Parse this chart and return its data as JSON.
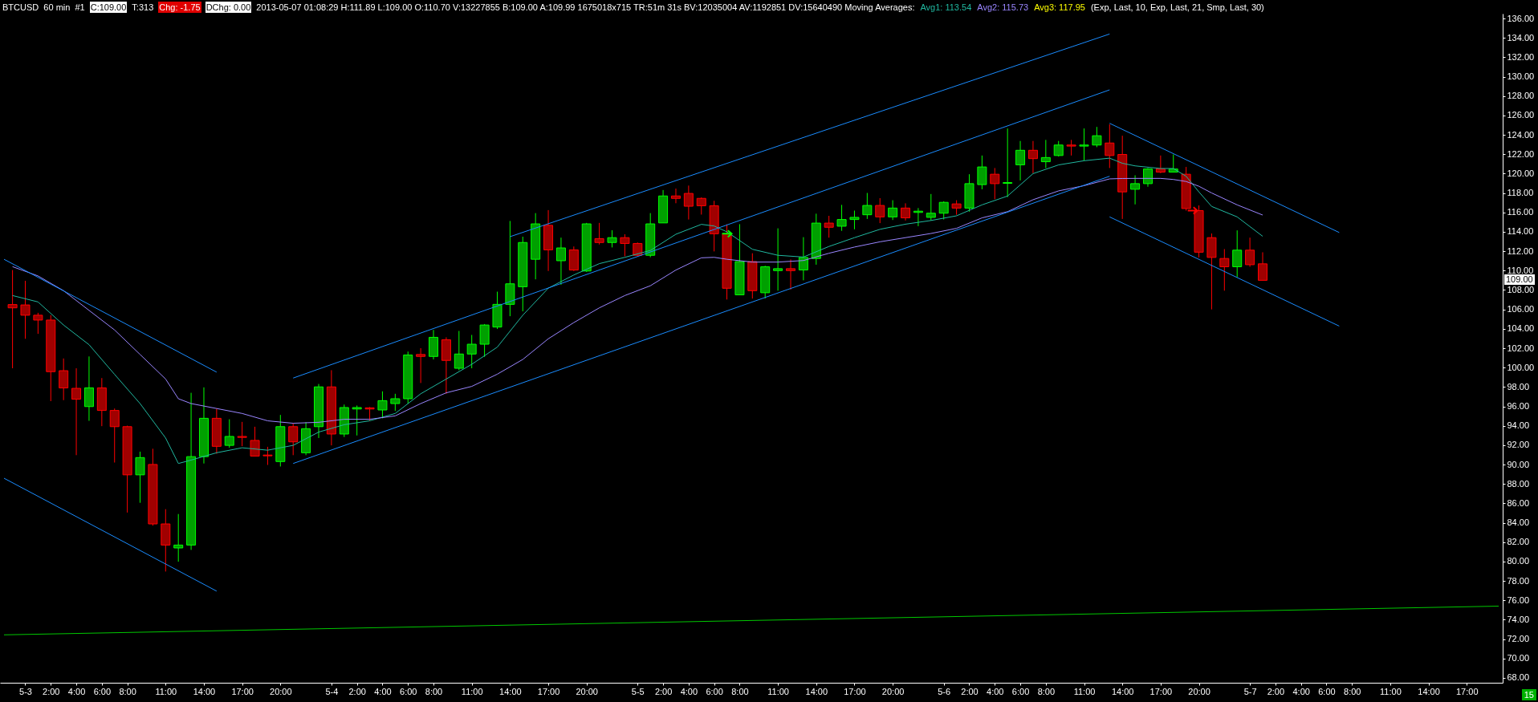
{
  "chart_data": {
    "type": "candlestick",
    "title": "BTCUSD  60 min  #1",
    "annotations": [
      "C:109.00",
      "T:313",
      "Chg: -1.75",
      "DChg: 0.00",
      "2013-05-07 01:08:29 H:111.89 L:109.00 O:110.70 V:13227855 B:109.00 A:109.99 1675018x715 TR:51m 31s BV:12035004 AV:1192851 DV:15640490  Moving Averages:",
      "Avg3: 117.95",
      "(Exp, Last, 10, Exp, Last, 21, Smp, Last, 30)",
      "109.00",
      "15"
    ],
    "x": [
      "2013-05-02T23:00",
      "2013-05-03T00:00",
      "2013-05-03T01:00",
      "2013-05-03T02:00",
      "2013-05-03T03:00",
      "2013-05-03T04:00",
      "2013-05-03T05:00",
      "2013-05-03T06:00",
      "2013-05-03T07:00",
      "2013-05-03T08:00",
      "2013-05-03T09:00",
      "2013-05-03T10:00",
      "2013-05-03T11:00",
      "2013-05-03T12:00",
      "2013-05-03T13:00",
      "2013-05-03T14:00",
      "2013-05-03T15:00",
      "2013-05-03T16:00",
      "2013-05-03T17:00",
      "2013-05-03T18:00",
      "2013-05-03T19:00",
      "2013-05-03T20:00",
      "2013-05-03T21:00",
      "2013-05-03T22:00",
      "2013-05-03T23:00",
      "2013-05-04T00:00",
      "2013-05-04T01:00",
      "2013-05-04T02:00",
      "2013-05-04T03:00",
      "2013-05-04T04:00",
      "2013-05-04T05:00",
      "2013-05-04T06:00",
      "2013-05-04T07:00",
      "2013-05-04T08:00",
      "2013-05-04T09:00",
      "2013-05-04T10:00",
      "2013-05-04T11:00",
      "2013-05-04T12:00",
      "2013-05-04T13:00",
      "2013-05-04T14:00",
      "2013-05-04T15:00",
      "2013-05-04T16:00",
      "2013-05-04T17:00",
      "2013-05-04T18:00",
      "2013-05-04T19:00",
      "2013-05-04T20:00",
      "2013-05-04T21:00",
      "2013-05-04T22:00",
      "2013-05-04T23:00",
      "2013-05-05T00:00",
      "2013-05-05T01:00",
      "2013-05-05T02:00",
      "2013-05-05T03:00",
      "2013-05-05T04:00",
      "2013-05-05T05:00",
      "2013-05-05T06:00",
      "2013-05-05T07:00",
      "2013-05-05T08:00",
      "2013-05-05T09:00",
      "2013-05-05T10:00",
      "2013-05-05T11:00",
      "2013-05-05T12:00",
      "2013-05-05T13:00",
      "2013-05-05T14:00",
      "2013-05-05T15:00",
      "2013-05-05T16:00",
      "2013-05-05T17:00",
      "2013-05-05T18:00",
      "2013-05-05T19:00",
      "2013-05-05T20:00",
      "2013-05-05T21:00",
      "2013-05-05T22:00",
      "2013-05-05T23:00",
      "2013-05-06T00:00",
      "2013-05-06T01:00",
      "2013-05-06T02:00",
      "2013-05-06T03:00",
      "2013-05-06T04:00",
      "2013-05-06T05:00",
      "2013-05-06T06:00",
      "2013-05-06T07:00",
      "2013-05-06T08:00",
      "2013-05-06T09:00",
      "2013-05-06T10:00",
      "2013-05-06T11:00",
      "2013-05-06T12:00",
      "2013-05-06T13:00",
      "2013-05-06T14:00",
      "2013-05-06T15:00",
      "2013-05-06T16:00",
      "2013-05-06T17:00",
      "2013-05-06T18:00",
      "2013-05-06T19:00",
      "2013-05-06T20:00",
      "2013-05-06T21:00",
      "2013-05-06T22:00",
      "2013-05-06T23:00",
      "2013-05-07T00:00",
      "2013-05-07T01:00"
    ],
    "ohlc": [
      [
        106.5,
        110.06,
        99.93,
        106.16
      ],
      [
        106.46,
        108.95,
        102.97,
        105.4
      ],
      [
        105.4,
        105.65,
        103.48,
        104.9
      ],
      [
        104.9,
        105.4,
        96.54,
        99.58
      ],
      [
        99.68,
        100.94,
        96.64,
        97.9
      ],
      [
        97.86,
        99.93,
        90.97,
        96.74
      ],
      [
        95.98,
        101.15,
        94.51,
        97.91
      ],
      [
        97.91,
        98.92,
        93.96,
        95.58
      ],
      [
        95.58,
        95.78,
        90.21,
        93.91
      ],
      [
        93.91,
        94.01,
        85.05,
        88.94
      ],
      [
        88.94,
        91.33,
        86.06,
        90.72
      ],
      [
        90.01,
        91.63,
        83.7,
        83.88
      ],
      [
        83.88,
        85.4,
        78.97,
        81.7
      ],
      [
        81.4,
        84.9,
        79.98,
        81.7
      ],
      [
        81.7,
        97.4,
        81.2,
        90.82
      ],
      [
        90.82,
        97.96,
        90.11,
        94.77
      ],
      [
        94.77,
        95.78,
        91.12,
        91.88
      ],
      [
        91.98,
        94.67,
        91.73,
        92.9
      ],
      [
        92.9,
        94.4,
        91.9,
        92.8
      ],
      [
        92.49,
        93.9,
        90.87,
        90.87
      ],
      [
        90.98,
        91.83,
        89.96,
        90.9
      ],
      [
        90.31,
        95.12,
        89.8,
        93.91
      ],
      [
        93.91,
        94.26,
        90.97,
        92.34
      ],
      [
        91.22,
        94.36,
        90.97,
        93.7
      ],
      [
        93.91,
        98.31,
        92.74,
        98.01
      ],
      [
        98.01,
        99.73,
        91.98,
        93.15
      ],
      [
        93.15,
        96.19,
        92.84,
        95.88
      ],
      [
        95.73,
        96.09,
        93.0,
        95.88
      ],
      [
        95.85,
        95.93,
        94.51,
        95.73
      ],
      [
        95.63,
        97.55,
        94.77,
        96.59
      ],
      [
        96.29,
        97.3,
        95.53,
        96.79
      ],
      [
        96.79,
        101.65,
        96.29,
        101.3
      ],
      [
        101.35,
        102.0,
        98.41,
        101.15
      ],
      [
        101.15,
        103.88,
        100.84,
        103.12
      ],
      [
        102.87,
        103.12,
        97.3,
        100.74
      ],
      [
        99.93,
        103.78,
        99.73,
        101.4
      ],
      [
        101.4,
        103.37,
        99.93,
        102.41
      ],
      [
        102.41,
        104.49,
        101.1,
        104.39
      ],
      [
        104.18,
        107.83,
        103.98,
        106.52
      ],
      [
        106.52,
        115.12,
        105.3,
        108.64
      ],
      [
        108.34,
        113.5,
        105.8,
        112.9
      ],
      [
        111.17,
        115.93,
        109.1,
        114.82
      ],
      [
        114.67,
        116.24,
        109.96,
        112.14
      ],
      [
        111.02,
        113.4,
        108.54,
        112.34
      ],
      [
        112.14,
        112.49,
        109.96,
        110.06
      ],
      [
        109.96,
        114.92,
        109.86,
        114.82
      ],
      [
        113.3,
        114.92,
        112.69,
        112.9
      ],
      [
        112.9,
        114.16,
        112.39,
        113.4
      ],
      [
        113.4,
        113.75,
        111.48,
        112.8
      ],
      [
        112.8,
        112.9,
        111.48,
        111.58
      ],
      [
        111.58,
        115.93,
        111.38,
        114.82
      ],
      [
        114.92,
        118.31,
        114.92,
        117.7
      ],
      [
        117.7,
        118.46,
        116.95,
        117.45
      ],
      [
        117.96,
        118.77,
        115.27,
        116.64
      ],
      [
        117.45,
        117.55,
        115.78,
        116.69
      ],
      [
        116.69,
        117.2,
        111.98,
        113.8
      ],
      [
        113.8,
        114.77,
        107.02,
        108.18
      ],
      [
        107.5,
        114.79,
        107.5,
        110.93
      ],
      [
        110.93,
        111.79,
        107.12,
        107.93
      ],
      [
        107.72,
        110.5,
        107.12,
        110.4
      ],
      [
        110.0,
        114.36,
        107.93,
        110.2
      ],
      [
        110.2,
        111.15,
        108.04,
        110.0
      ],
      [
        110.07,
        113.45,
        109.0,
        111.36
      ],
      [
        111.25,
        115.87,
        110.61,
        114.9
      ],
      [
        114.9,
        115.65,
        113.4,
        114.47
      ],
      [
        114.58,
        116.78,
        114.1,
        115.27
      ],
      [
        115.27,
        116.19,
        114.26,
        115.49
      ],
      [
        115.76,
        118.01,
        115.33,
        116.72
      ],
      [
        116.72,
        117.47,
        114.9,
        115.54
      ],
      [
        115.54,
        117.26,
        115.22,
        116.45
      ],
      [
        116.45,
        116.94,
        115.17,
        115.44
      ],
      [
        116.0,
        116.45,
        114.58,
        116.13
      ],
      [
        115.49,
        117.9,
        115.17,
        115.92
      ],
      [
        115.92,
        117.15,
        115.27,
        117.04
      ],
      [
        116.88,
        117.26,
        115.76,
        116.45
      ],
      [
        116.45,
        119.94,
        116.08,
        118.97
      ],
      [
        118.87,
        121.87,
        118.39,
        120.69
      ],
      [
        119.94,
        120.58,
        117.37,
        118.97
      ],
      [
        119.0,
        124.66,
        117.58,
        119.08
      ],
      [
        120.91,
        123.37,
        119.3,
        122.41
      ],
      [
        122.41,
        123.37,
        120.05,
        121.55
      ],
      [
        121.23,
        123.48,
        120.58,
        121.66
      ],
      [
        121.87,
        123.37,
        121.76,
        122.95
      ],
      [
        122.95,
        123.48,
        121.87,
        122.84
      ],
      [
        122.84,
        124.66,
        121.33,
        122.95
      ],
      [
        122.95,
        124.82,
        122.73,
        123.91
      ],
      [
        123.16,
        125.09,
        120.58,
        121.87
      ],
      [
        121.98,
        123.91,
        115.33,
        118.12
      ],
      [
        118.39,
        119.83,
        116.83,
        118.97
      ],
      [
        118.97,
        120.58,
        118.65,
        120.48
      ],
      [
        120.48,
        121.87,
        120.05,
        120.16
      ],
      [
        120.16,
        121.98,
        120.16,
        120.48
      ],
      [
        119.94,
        120.69,
        116.19,
        116.4
      ],
      [
        116.19,
        116.72,
        111.36,
        111.9
      ],
      [
        113.4,
        113.83,
        106.0,
        111.36
      ],
      [
        111.25,
        112.22,
        107.93,
        110.4
      ],
      [
        110.4,
        114.15,
        109.32,
        112.11
      ],
      [
        112.11,
        113.4,
        110.4,
        110.61
      ],
      [
        110.7,
        111.89,
        109.0,
        109.0
      ]
    ],
    "series": [
      {
        "type": "line",
        "name": "Avg1: 113.54",
        "color": "#20b8a0",
        "x": [
          "2013-05-02T23:00",
          "2013-05-03T01:00",
          "2013-05-03T03:00",
          "2013-05-03T05:00",
          "2013-05-03T07:00",
          "2013-05-03T09:00",
          "2013-05-03T11:00",
          "2013-05-03T12:00",
          "2013-05-03T13:00",
          "2013-05-03T15:00",
          "2013-05-03T17:00",
          "2013-05-03T19:00",
          "2013-05-03T21:00",
          "2013-05-03T23:00",
          "2013-05-04T01:00",
          "2013-05-04T03:00",
          "2013-05-04T05:00",
          "2013-05-04T07:00",
          "2013-05-04T09:00",
          "2013-05-04T11:00",
          "2013-05-04T13:00",
          "2013-05-04T15:00",
          "2013-05-04T17:00",
          "2013-05-04T19:00",
          "2013-05-04T21:00",
          "2013-05-04T23:00",
          "2013-05-05T01:00",
          "2013-05-05T03:00",
          "2013-05-05T05:00",
          "2013-05-05T06:00",
          "2013-05-05T07:00",
          "2013-05-05T09:00",
          "2013-05-05T11:00",
          "2013-05-05T13:00",
          "2013-05-05T15:00",
          "2013-05-05T17:00",
          "2013-05-05T19:00",
          "2013-05-05T21:00",
          "2013-05-05T23:00",
          "2013-05-06T01:00",
          "2013-05-06T03:00",
          "2013-05-06T05:00",
          "2013-05-06T07:00",
          "2013-05-06T09:00",
          "2013-05-06T11:00",
          "2013-05-06T13:00",
          "2013-05-06T14:00",
          "2013-05-06T15:00",
          "2013-05-06T17:00",
          "2013-05-06T18:00",
          "2013-05-06T19:00",
          "2013-05-06T20:00",
          "2013-05-06T21:00",
          "2013-05-06T23:00",
          "2013-05-07T01:00"
        ],
        "values": [
          107.43,
          106.77,
          104.39,
          102.36,
          99.3,
          96.29,
          92.74,
          90.11,
          90.46,
          91.22,
          91.73,
          91.48,
          91.98,
          93.35,
          94.11,
          94.51,
          95.27,
          97.3,
          98.82,
          100.34,
          102.11,
          105.4,
          108.19,
          109.55,
          110.72,
          111.37,
          112.08,
          113.75,
          114.77,
          114.6,
          114.0,
          112.2,
          111.58,
          111.4,
          112.49,
          113.4,
          114.26,
          114.79,
          115.17,
          115.65,
          116.78,
          117.69,
          120.0,
          120.9,
          121.33,
          121.6,
          121.07,
          120.8,
          120.53,
          120.53,
          119.73,
          118.12,
          116.62,
          115.54,
          113.54
        ]
      },
      {
        "type": "line",
        "name": "Avg2: 115.73",
        "color": "#9a86ff",
        "x": [
          "2013-05-02T23:00",
          "2013-05-03T01:00",
          "2013-05-03T03:00",
          "2013-05-03T05:00",
          "2013-05-03T07:00",
          "2013-05-03T09:00",
          "2013-05-03T11:00",
          "2013-05-03T12:00",
          "2013-05-03T13:00",
          "2013-05-03T15:00",
          "2013-05-03T17:00",
          "2013-05-03T19:00",
          "2013-05-03T21:00",
          "2013-05-03T23:00",
          "2013-05-04T01:00",
          "2013-05-04T03:00",
          "2013-05-04T05:00",
          "2013-05-04T07:00",
          "2013-05-04T09:00",
          "2013-05-04T11:00",
          "2013-05-04T13:00",
          "2013-05-04T15:00",
          "2013-05-04T17:00",
          "2013-05-04T19:00",
          "2013-05-04T21:00",
          "2013-05-04T23:00",
          "2013-05-05T01:00",
          "2013-05-05T03:00",
          "2013-05-05T05:00",
          "2013-05-05T06:00",
          "2013-05-05T07:00",
          "2013-05-05T09:00",
          "2013-05-05T11:00",
          "2013-05-05T13:00",
          "2013-05-05T15:00",
          "2013-05-05T17:00",
          "2013-05-05T19:00",
          "2013-05-05T21:00",
          "2013-05-05T23:00",
          "2013-05-06T01:00",
          "2013-05-06T03:00",
          "2013-05-06T05:00",
          "2013-05-06T07:00",
          "2013-05-06T09:00",
          "2013-05-06T11:00",
          "2013-05-06T13:00",
          "2013-05-06T14:00",
          "2013-05-06T15:00",
          "2013-05-06T17:00",
          "2013-05-06T18:00",
          "2013-05-06T19:00",
          "2013-05-06T20:00",
          "2013-05-06T21:00",
          "2013-05-06T23:00",
          "2013-05-07T01:00"
        ],
        "values": [
          110.41,
          109.45,
          107.93,
          105.9,
          103.88,
          101.35,
          98.82,
          96.79,
          96.29,
          95.78,
          95.27,
          94.51,
          94.26,
          94.36,
          94.67,
          94.67,
          95.02,
          96.29,
          97.4,
          98.06,
          99.32,
          100.84,
          102.97,
          104.64,
          106.16,
          107.43,
          108.44,
          110.06,
          111.32,
          111.37,
          111.17,
          110.88,
          110.88,
          111.04,
          111.79,
          112.43,
          112.97,
          113.4,
          113.83,
          114.36,
          115.44,
          116.08,
          117.31,
          118.22,
          118.76,
          119.46,
          119.5,
          119.51,
          119.51,
          119.4,
          119.19,
          118.7,
          118.01,
          116.78,
          115.73
        ]
      },
      {
        "type": "line",
        "color": "#1a8cff",
        "x": [
          "2013-05-02T22:20",
          "2013-05-03T15:00"
        ],
        "values": [
          111.17,
          99.53
        ]
      },
      {
        "type": "line",
        "color": "#1a8cff",
        "x": [
          "2013-05-02T22:20",
          "2013-05-03T15:00"
        ],
        "values": [
          88.59,
          76.95
        ]
      },
      {
        "type": "line",
        "color": "#1a8cff",
        "x": [
          "2013-05-03T21:00",
          "2013-05-06T13:00"
        ],
        "values": [
          90.11,
          119.73
        ]
      },
      {
        "type": "line",
        "color": "#1a8cff",
        "x": [
          "2013-05-03T21:00",
          "2013-05-06T13:00"
        ],
        "values": [
          98.92,
          128.64
        ]
      },
      {
        "type": "line",
        "color": "#1a8cff",
        "x": [
          "2013-05-04T14:00",
          "2013-05-06T13:00"
        ],
        "values": [
          113.5,
          134.4
        ]
      },
      {
        "type": "line",
        "color": "#1a8cff",
        "x": [
          "2013-05-06T13:00",
          "2013-05-07T07:00"
        ],
        "values": [
          125.19,
          113.93
        ]
      },
      {
        "type": "line",
        "color": "#1a8cff",
        "x": [
          "2013-05-06T13:00",
          "2013-05-07T07:00"
        ],
        "values": [
          115.54,
          104.28
        ]
      },
      {
        "type": "line",
        "color": "#00c800",
        "x": [
          "2013-05-02T22:20",
          "2013-05-07T19:30"
        ],
        "values": [
          72.44,
          75.4
        ]
      }
    ],
    "xlim": [
      "2013-05-02T22:20",
      "2013-05-07T19:30"
    ],
    "xticks": [
      {
        "value": "2013-05-03T00:00",
        "label": "5-3"
      },
      {
        "value": "2013-05-03T02:00",
        "label": "2:00"
      },
      {
        "value": "2013-05-03T04:00",
        "label": "4:00"
      },
      {
        "value": "2013-05-03T06:00",
        "label": "6:00"
      },
      {
        "value": "2013-05-03T08:00",
        "label": "8:00"
      },
      {
        "value": "2013-05-03T11:00",
        "label": "11:00"
      },
      {
        "value": "2013-05-03T14:00",
        "label": "14:00"
      },
      {
        "value": "2013-05-03T17:00",
        "label": "17:00"
      },
      {
        "value": "2013-05-03T20:00",
        "label": "20:00"
      },
      {
        "value": "2013-05-04T00:00",
        "label": "5-4"
      },
      {
        "value": "2013-05-04T02:00",
        "label": "2:00"
      },
      {
        "value": "2013-05-04T04:00",
        "label": "4:00"
      },
      {
        "value": "2013-05-04T06:00",
        "label": "6:00"
      },
      {
        "value": "2013-05-04T08:00",
        "label": "8:00"
      },
      {
        "value": "2013-05-04T11:00",
        "label": "11:00"
      },
      {
        "value": "2013-05-04T14:00",
        "label": "14:00"
      },
      {
        "value": "2013-05-04T17:00",
        "label": "17:00"
      },
      {
        "value": "2013-05-04T20:00",
        "label": "20:00"
      },
      {
        "value": "2013-05-05T00:00",
        "label": "5-5"
      },
      {
        "value": "2013-05-05T02:00",
        "label": "2:00"
      },
      {
        "value": "2013-05-05T04:00",
        "label": "4:00"
      },
      {
        "value": "2013-05-05T06:00",
        "label": "6:00"
      },
      {
        "value": "2013-05-05T08:00",
        "label": "8:00"
      },
      {
        "value": "2013-05-05T11:00",
        "label": "11:00"
      },
      {
        "value": "2013-05-05T14:00",
        "label": "14:00"
      },
      {
        "value": "2013-05-05T17:00",
        "label": "17:00"
      },
      {
        "value": "2013-05-05T20:00",
        "label": "20:00"
      },
      {
        "value": "2013-05-06T00:00",
        "label": "5-6"
      },
      {
        "value": "2013-05-06T02:00",
        "label": "2:00"
      },
      {
        "value": "2013-05-06T04:00",
        "label": "4:00"
      },
      {
        "value": "2013-05-06T06:00",
        "label": "6:00"
      },
      {
        "value": "2013-05-06T08:00",
        "label": "8:00"
      },
      {
        "value": "2013-05-06T11:00",
        "label": "11:00"
      },
      {
        "value": "2013-05-06T14:00",
        "label": "14:00"
      },
      {
        "value": "2013-05-06T17:00",
        "label": "17:00"
      },
      {
        "value": "2013-05-06T20:00",
        "label": "20:00"
      },
      {
        "value": "2013-05-07T00:00",
        "label": "5-7"
      },
      {
        "value": "2013-05-07T02:00",
        "label": "2:00"
      },
      {
        "value": "2013-05-07T04:00",
        "label": "4:00"
      },
      {
        "value": "2013-05-07T06:00",
        "label": "6:00"
      },
      {
        "value": "2013-05-07T08:00",
        "label": "8:00"
      },
      {
        "value": "2013-05-07T11:00",
        "label": "11:00"
      },
      {
        "value": "2013-05-07T14:00",
        "label": "14:00"
      },
      {
        "value": "2013-05-07T17:00",
        "label": "17:00"
      }
    ],
    "ylim": [
      67.5,
      136.5
    ],
    "yticks": [
      {
        "value": 68,
        "label": "68.00"
      },
      {
        "value": 70,
        "label": "70.00"
      },
      {
        "value": 72,
        "label": "72.00"
      },
      {
        "value": 74,
        "label": "74.00"
      },
      {
        "value": 76,
        "label": "76.00"
      },
      {
        "value": 78,
        "label": "78.00"
      },
      {
        "value": 80,
        "label": "80.00"
      },
      {
        "value": 82,
        "label": "82.00"
      },
      {
        "value": 84,
        "label": "84.00"
      },
      {
        "value": 86,
        "label": "86.00"
      },
      {
        "value": 88,
        "label": "88.00"
      },
      {
        "value": 90,
        "label": "90.00"
      },
      {
        "value": 92,
        "label": "92.00"
      },
      {
        "value": 94,
        "label": "94.00"
      },
      {
        "value": 96,
        "label": "96.00"
      },
      {
        "value": 98,
        "label": "98.00"
      },
      {
        "value": 100,
        "label": "100.00"
      },
      {
        "value": 102,
        "label": "102.00"
      },
      {
        "value": 104,
        "label": "104.00"
      },
      {
        "value": 106,
        "label": "106.00"
      },
      {
        "value": 108,
        "label": "108.00"
      },
      {
        "value": 110,
        "label": "110.00"
      },
      {
        "value": 112,
        "label": "112.00"
      },
      {
        "value": 114,
        "label": "114.00"
      },
      {
        "value": 116,
        "label": "116.00"
      },
      {
        "value": 118,
        "label": "118.00"
      },
      {
        "value": 120,
        "label": "120.00"
      },
      {
        "value": 122,
        "label": "122.00"
      },
      {
        "value": 124,
        "label": "124.00"
      },
      {
        "value": 126,
        "label": "126.00"
      },
      {
        "value": 128,
        "label": "128.00"
      },
      {
        "value": 130,
        "label": "130.00"
      },
      {
        "value": 132,
        "label": "132.00"
      },
      {
        "value": 134,
        "label": "134.00"
      },
      {
        "value": 136,
        "label": "136.00"
      }
    ]
  }
}
